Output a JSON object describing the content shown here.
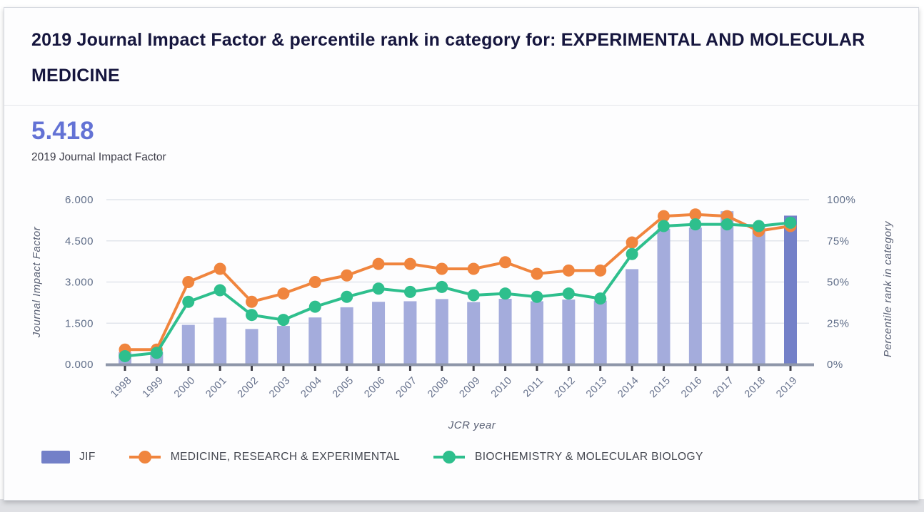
{
  "header": {
    "title": "2019 Journal Impact Factor & percentile rank in category for: EXPERIMENTAL AND MOLECULAR MEDICINE"
  },
  "summary": {
    "value": "5.418",
    "label": "2019 Journal Impact Factor"
  },
  "chart_data": {
    "type": "combo-bar-line",
    "title": "",
    "xlabel": "JCR year",
    "x": [
      1998,
      1999,
      2000,
      2001,
      2002,
      2003,
      2004,
      2005,
      2006,
      2007,
      2008,
      2009,
      2010,
      2011,
      2012,
      2013,
      2014,
      2015,
      2016,
      2017,
      2018,
      2019
    ],
    "left_axis": {
      "label": "Journal Impact Factor",
      "ticks": [
        "0.000",
        "1.500",
        "3.000",
        "4.500",
        "6.000"
      ],
      "range": [
        0,
        6
      ]
    },
    "right_axis": {
      "label": "Percentile rank in category",
      "ticks": [
        "0%",
        "25%",
        "50%",
        "75%",
        "100%"
      ],
      "range": [
        0,
        100
      ]
    },
    "grid": true,
    "legend_position": "bottom",
    "series": [
      {
        "name": "JIF",
        "type": "bar",
        "axis": "left",
        "color": "#a4acdc",
        "highlight_color": "#7380c8",
        "highlight_index": 21,
        "values": [
          0.45,
          0.45,
          1.44,
          1.7,
          1.29,
          1.4,
          1.71,
          2.08,
          2.28,
          2.3,
          2.38,
          2.27,
          2.39,
          2.3,
          2.36,
          2.32,
          3.47,
          4.94,
          4.98,
          5.58,
          5.0,
          5.418
        ]
      },
      {
        "name": "MEDICINE, RESEARCH & EXPERIMENTAL",
        "type": "line",
        "axis": "right",
        "color": "#f0853e",
        "values": [
          9,
          9,
          50,
          58,
          38,
          43,
          50,
          54,
          61,
          61,
          58,
          58,
          62,
          55,
          57,
          57,
          74,
          90,
          91,
          90,
          81,
          84
        ]
      },
      {
        "name": "BIOCHEMISTRY & MOLECULAR BIOLOGY",
        "type": "line",
        "axis": "right",
        "color": "#2ebf8d",
        "values": [
          5,
          7,
          38,
          45,
          30,
          27,
          35,
          41,
          46,
          44,
          47,
          42,
          43,
          41,
          43,
          40,
          67,
          84,
          85,
          85,
          84,
          86
        ]
      }
    ],
    "colors": {
      "grid_line": "#e2e5ec",
      "axis_line": "#8e96a9",
      "tick_mark": "#3e3e47",
      "tick_label": "#5f6d88",
      "year_label": "#66718c",
      "axis_title": "#5a6175"
    }
  }
}
